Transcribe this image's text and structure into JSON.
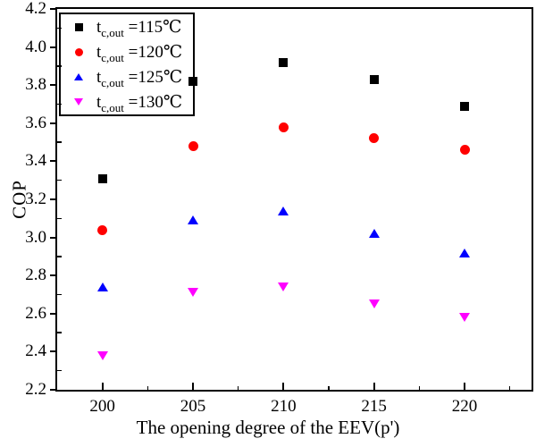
{
  "chart_data": {
    "type": "scatter",
    "title": "",
    "xlabel": "The opening degree of the EEV(p')",
    "ylabel": "COP",
    "x": [
      200,
      205,
      210,
      215,
      220
    ],
    "xlim": [
      197.5,
      223.7
    ],
    "ylim": [
      2.2,
      4.2
    ],
    "x_major_ticks": [
      200,
      205,
      210,
      215,
      220
    ],
    "x_minor_ticks": [
      202.5,
      207.5,
      212.5,
      217.5,
      222.5
    ],
    "y_major_ticks": [
      2.2,
      2.4,
      2.6,
      2.8,
      3.0,
      3.2,
      3.4,
      3.6,
      3.8,
      4.0,
      4.2
    ],
    "y_minor_ticks": [
      2.3,
      2.5,
      2.7,
      2.9,
      3.1,
      3.3,
      3.5,
      3.7,
      3.9,
      4.1
    ],
    "grid": false,
    "legend_position": "top-left-inside",
    "series": [
      {
        "name": "t c,out =115℃",
        "label_pre": "t",
        "label_sub": "c,out",
        "label_post": " =115℃",
        "marker": "square",
        "color": "#000000",
        "values": [
          3.31,
          3.82,
          3.92,
          3.83,
          3.69
        ]
      },
      {
        "name": "t c,out =120℃",
        "label_pre": "t",
        "label_sub": "c,out",
        "label_post": " =120℃",
        "marker": "circle",
        "color": "#ff0000",
        "values": [
          3.04,
          3.48,
          3.58,
          3.52,
          3.46
        ]
      },
      {
        "name": "t c,out =125℃",
        "label_pre": "t",
        "label_sub": "c,out",
        "label_post": " =125℃",
        "marker": "triangle-up",
        "color": "#0000ff",
        "values": [
          2.74,
          3.09,
          3.14,
          3.02,
          2.92
        ]
      },
      {
        "name": "t c,out =130℃",
        "label_pre": "t",
        "label_sub": "c,out",
        "label_post": " =130℃",
        "marker": "triangle-down",
        "color": "#ff00ff",
        "values": [
          2.38,
          2.71,
          2.74,
          2.65,
          2.58
        ]
      }
    ]
  }
}
